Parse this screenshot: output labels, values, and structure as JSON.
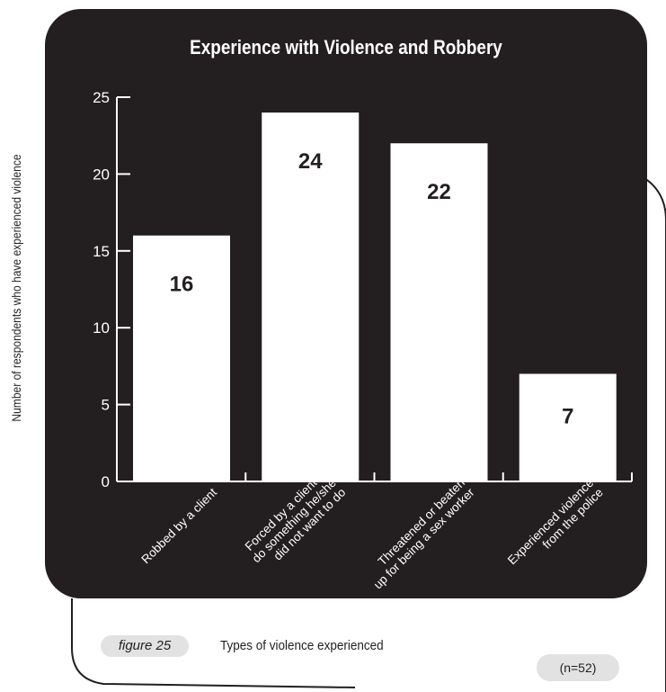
{
  "chart_data": {
    "type": "bar",
    "title": "Experience with Violence and Robbery",
    "ylabel": "Number of respondents who have experienced violence",
    "xlabel": "",
    "categories": [
      [
        "Robbed by a client"
      ],
      [
        "Forced by a client to",
        "do something he/she",
        "did not want to do"
      ],
      [
        "Threatened or beaten",
        "up for being a sex worker"
      ],
      [
        "Experienced violence",
        "from the police"
      ]
    ],
    "values": [
      16,
      24,
      22,
      7
    ],
    "data_labels": [
      "16",
      "24",
      "22",
      "7"
    ],
    "ylim": [
      0,
      25
    ],
    "yticks": [
      0,
      5,
      10,
      15,
      20,
      25
    ],
    "grid": false,
    "bar_color": "#ffffff",
    "background_color": "#231f20"
  },
  "figure": {
    "label": "figure 25",
    "caption": "Types of violence experienced",
    "sample_size": "(n=52)"
  }
}
